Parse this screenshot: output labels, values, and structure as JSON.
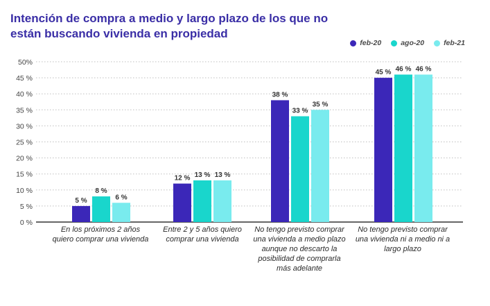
{
  "title": "Intención de compra a medio y largo plazo de los que no están buscando vivienda en propiedad",
  "colors": {
    "title": "#3a2ea6",
    "axis": "#333333",
    "grid": "#bfbfbf"
  },
  "chart_data": {
    "type": "bar",
    "categories": [
      "En los próximos 2 años quiero comprar una vivienda",
      "Entre 2 y 5 años quiero comprar una vivienda",
      "No tengo previsto comprar una vivienda a medio plazo aunque no descarto la posibilidad de comprarla más adelante",
      "No tengo previsto comprar una vivienda ni a medio ni a largo plazo"
    ],
    "series": [
      {
        "name": "feb-20",
        "color": "#3b27b8",
        "values": [
          5,
          12,
          38,
          45
        ],
        "labels": [
          "5 %",
          "12 %",
          "38 %",
          "45 %"
        ]
      },
      {
        "name": "ago-20",
        "color": "#19d6cc",
        "values": [
          8,
          13,
          33,
          46
        ],
        "labels": [
          "8 %",
          "13 %",
          "33 %",
          "46 %"
        ]
      },
      {
        "name": "feb-21",
        "color": "#79ebee",
        "values": [
          6,
          13,
          35,
          46
        ],
        "labels": [
          "6 %",
          "13 %",
          "35 %",
          "46 %"
        ]
      }
    ],
    "yticks": [
      "0 %",
      "5 %",
      "10 %",
      "15 %",
      "20 %",
      "25 %",
      "30 %",
      "35 %",
      "40 %",
      "45 %",
      "50%"
    ],
    "ylim": [
      0,
      50
    ],
    "grid": true,
    "legend_position": "top-right"
  }
}
